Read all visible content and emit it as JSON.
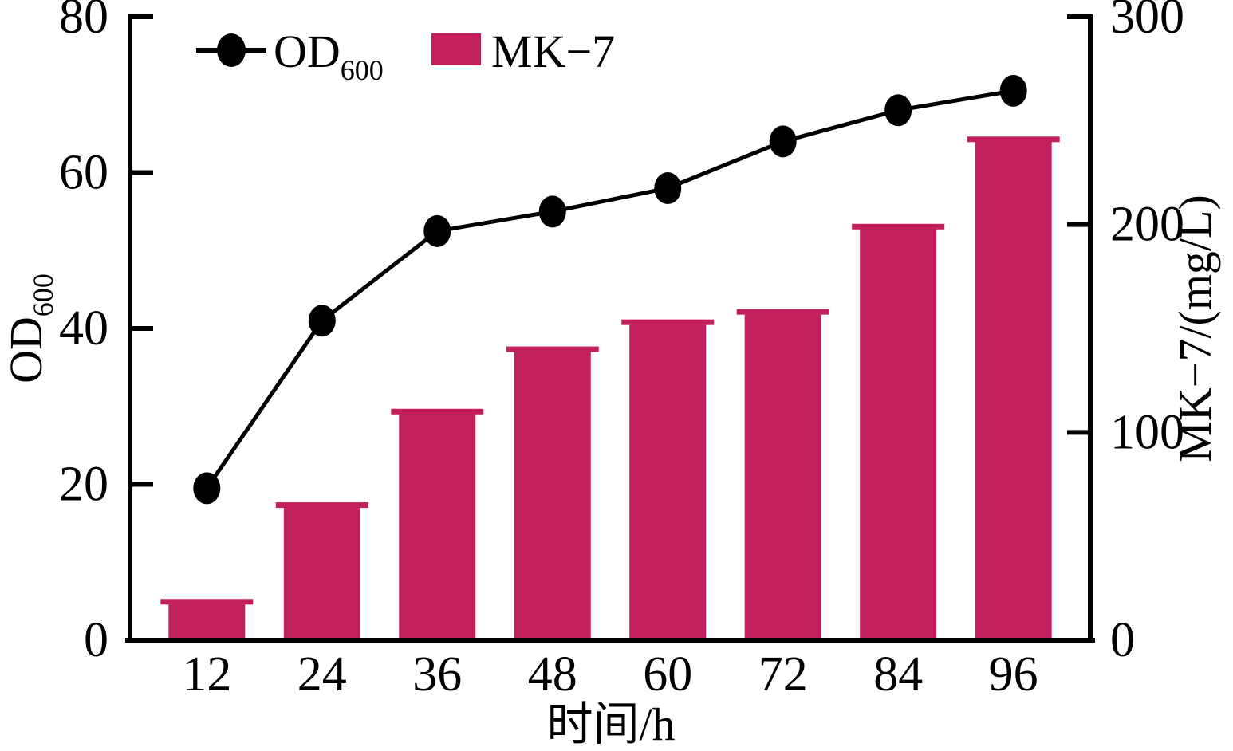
{
  "legend": {
    "od_label_main": "OD",
    "od_label_sub": "600",
    "mk_label": "MK−7"
  },
  "axes": {
    "left_label_main": "OD",
    "left_label_sub": "600",
    "right_label": "MK−7/(mg/L)",
    "x_label": "时间/h"
  },
  "colors": {
    "bar": "#C2205C",
    "line": "#000000",
    "background": "#FFFFFF",
    "text": "#000000"
  },
  "chart_data": {
    "type": "combo",
    "categories": [
      12,
      24,
      36,
      48,
      60,
      72,
      84,
      96
    ],
    "x_tick_labels": [
      "12",
      "24",
      "36",
      "48",
      "60",
      "72",
      "84",
      "96"
    ],
    "series": [
      {
        "name": "OD600",
        "type": "line",
        "axis": "left",
        "color": "#000000",
        "values": [
          19.5,
          41,
          52.5,
          55,
          58,
          64,
          68,
          70.5
        ]
      },
      {
        "name": "MK-7",
        "type": "bar",
        "axis": "right",
        "color": "#C2205C",
        "values": [
          18.5,
          65,
          110,
          140,
          153,
          158,
          199,
          241
        ]
      }
    ],
    "left_axis": {
      "label": "OD600",
      "range": [
        0,
        80
      ],
      "ticks": [
        0,
        20,
        40,
        60,
        80
      ]
    },
    "right_axis": {
      "label": "MK−7/(mg/L)",
      "range": [
        0,
        300
      ],
      "ticks": [
        0,
        100,
        200,
        300
      ]
    },
    "x_axis": {
      "label": "时间/h",
      "range": [
        4,
        104
      ]
    },
    "legend_position": "top-left",
    "grid": false
  }
}
